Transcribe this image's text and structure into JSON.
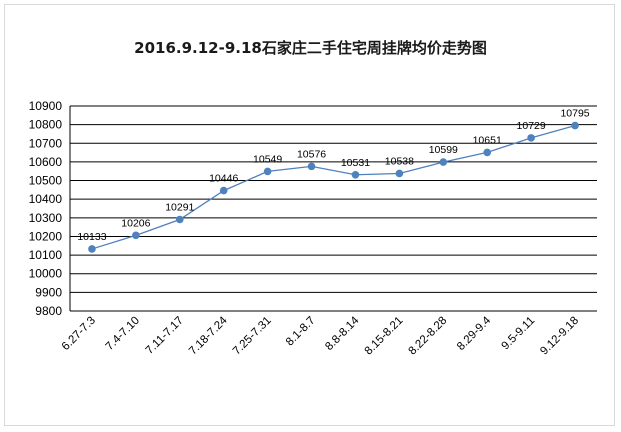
{
  "chart_data": {
    "type": "line",
    "title": "2016.9.12-9.18石家庄二手住宅周挂牌均价走势图",
    "xlabel": "",
    "ylabel": "",
    "categories": [
      "6.27-7.3",
      "7.4-7.10",
      "7.11-7.17",
      "7.18-7.24",
      "7.25-7.31",
      "8.1-8.7",
      "8.8-8.14",
      "8.15-8.21",
      "8.22-8.28",
      "8.29-9.4",
      "9.5-9.11",
      "9.12-9.18"
    ],
    "series": [
      {
        "values": [
          10133,
          10206,
          10291,
          10446,
          10549,
          10576,
          10531,
          10538,
          10599,
          10651,
          10729,
          10795
        ]
      }
    ],
    "ylim": [
      9800,
      10900
    ],
    "yticks": [
      9800,
      9900,
      10000,
      10100,
      10200,
      10300,
      10400,
      10500,
      10600,
      10700,
      10800,
      10900
    ],
    "grid": true,
    "legend": "none",
    "colors": {
      "line": "#4f81bd",
      "marker": "#4f81bd",
      "grid": "#000000"
    }
  }
}
